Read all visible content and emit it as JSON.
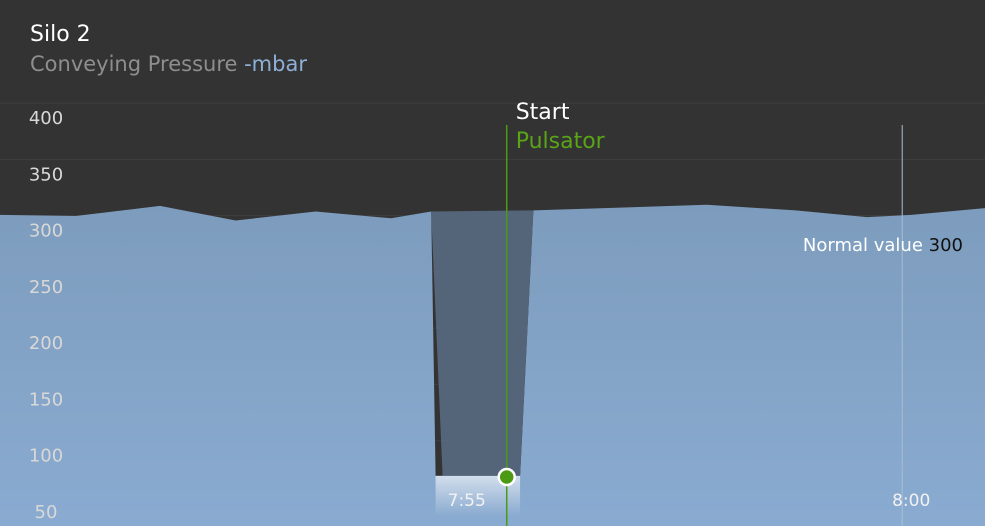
{
  "header": {
    "title": "Silo 2",
    "subtitle": "Conveying Pressure",
    "unit": "-mbar"
  },
  "colors": {
    "background": "#333333",
    "fill": "#86a8cc",
    "dip_shadow": "#56687d",
    "event_line": "#4c9a14",
    "event_text": "#5aa417",
    "grid": "#3f3f3f"
  },
  "chart_data": {
    "type": "area",
    "title": "Conveying Pressure",
    "ylabel": "-mbar",
    "ylim": [
      25,
      425
    ],
    "yticks": [
      400,
      350,
      300,
      250,
      200,
      150,
      100,
      50
    ],
    "grid": true,
    "x_time_labels": [
      {
        "minutes": 475,
        "label": "7:55"
      },
      {
        "minutes": 480,
        "label": "8:00"
      }
    ],
    "xlim_minutes": [
      469.75,
      480.83
    ],
    "series": [
      {
        "values_x_minutes": [
          469.75,
          470.6,
          471.55,
          472.4,
          473.3,
          474.15,
          474.6,
          474.65,
          475.6,
          475.75,
          477.7,
          478.7,
          479.5,
          480.0,
          480.83
        ],
        "values_y": [
          314,
          313,
          322,
          309,
          317,
          311,
          317,
          82,
          82,
          318,
          323,
          318,
          312,
          314,
          320
        ]
      }
    ],
    "event": {
      "x_minutes": 475.45,
      "y": 81,
      "label_title": "Start",
      "label_sub": "Pulsator"
    },
    "reference": {
      "label": "Normal value",
      "value": "300"
    }
  }
}
